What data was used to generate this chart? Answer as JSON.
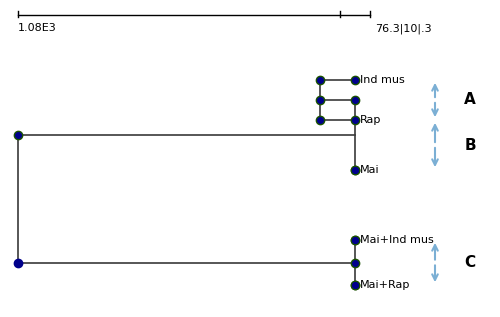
{
  "scale_left_label": "1.08E3",
  "scale_right_label": "76.3|10|.3",
  "leaves": [
    "Ind mus",
    "Rap",
    "Mai",
    "Mai+Ind mus",
    "Mai+Rap"
  ],
  "node_color_green": "#1a5200",
  "node_color_blue": "#00008b",
  "line_color": "#3a3a3a",
  "arrow_color": "#7bafd4",
  "bg_color": "#ffffff",
  "leaf_label_fontsize": 8,
  "cluster_label_fontsize": 11
}
